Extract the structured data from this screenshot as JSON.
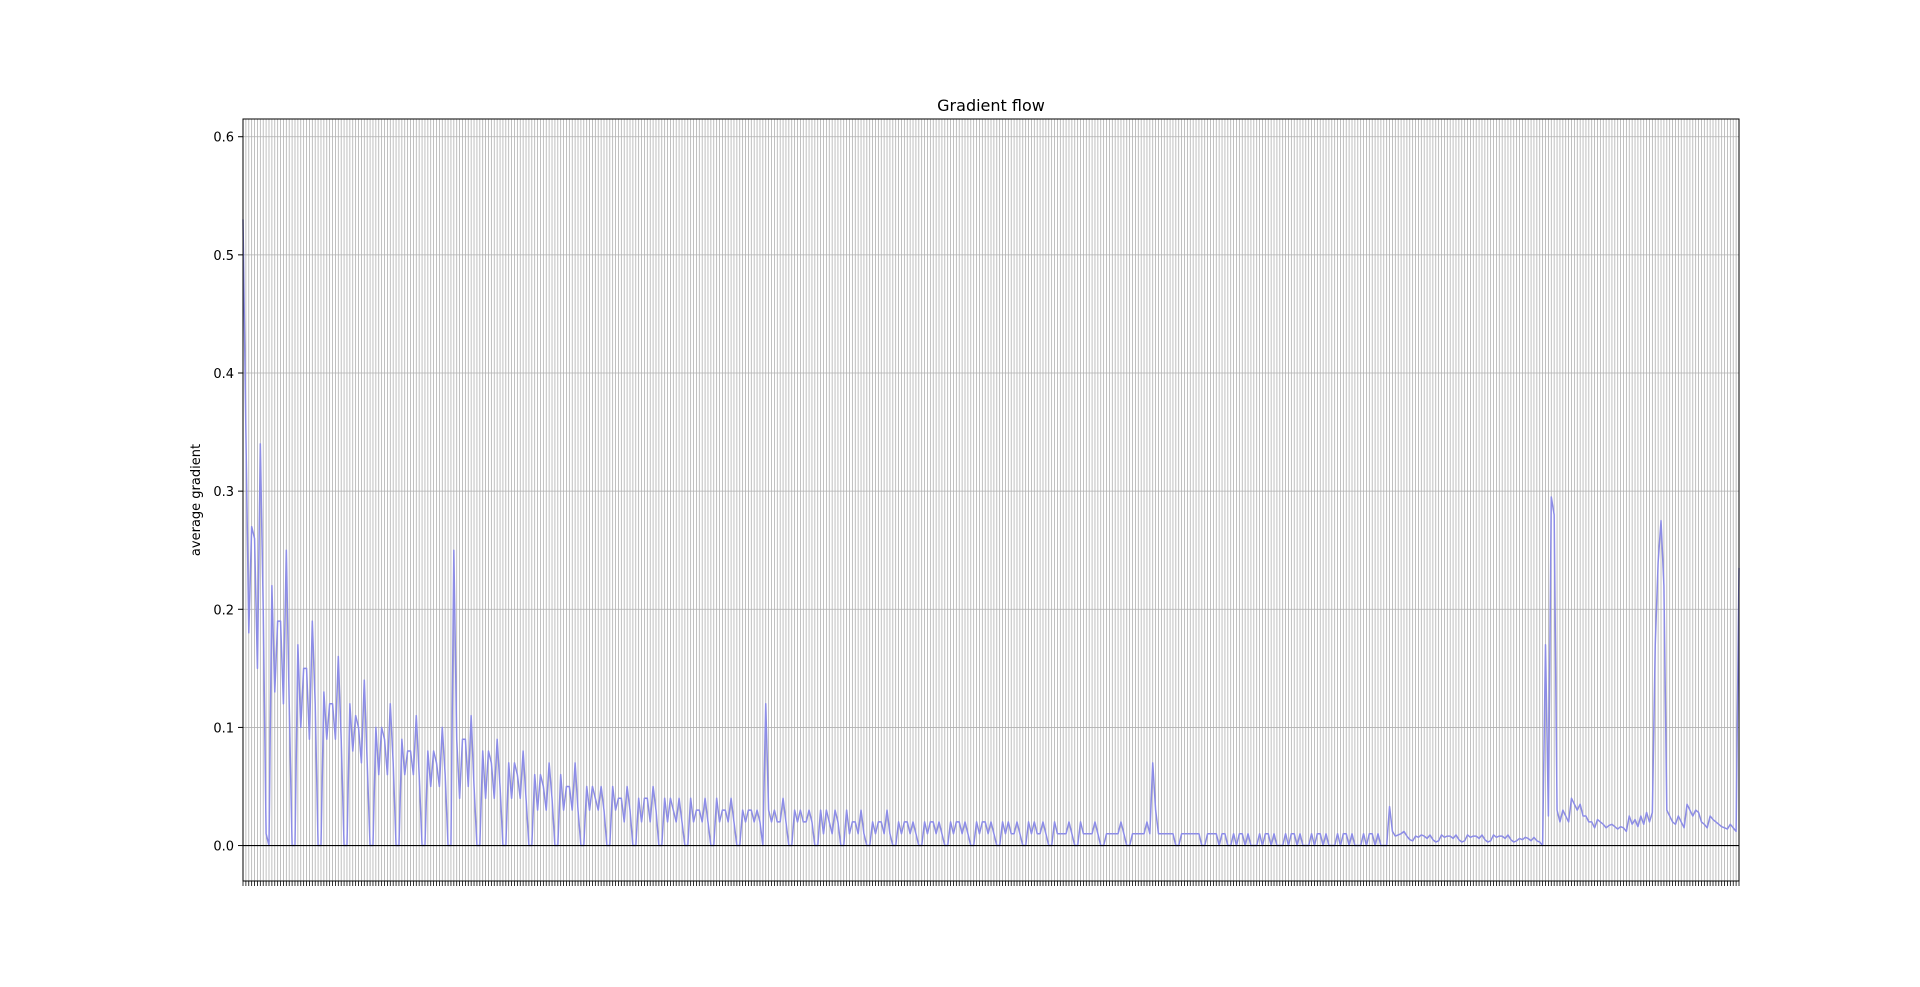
{
  "chart_data": {
    "type": "line",
    "title": "Gradient flow",
    "xlabel": "",
    "ylabel": "average gradient",
    "ylim": [
      -0.03,
      0.615
    ],
    "yticks": [
      0.0,
      0.1,
      0.2,
      0.3,
      0.4,
      0.5,
      0.6
    ],
    "ytick_labels": [
      "0.0",
      "0.1",
      "0.2",
      "0.3",
      "0.4",
      "0.5",
      "0.6"
    ],
    "grid": true,
    "baseline": 0.0,
    "colors": {
      "line": "#8c8ce6",
      "grid": "#b0b0b0",
      "axis": "#000000"
    },
    "layer_names_note": "x tick labels are rotated layer names, not legible in the screenshot",
    "series": [
      {
        "values": [
          0.53,
          0.35,
          0.18,
          0.27,
          0.26,
          0.15,
          0.34,
          0.2,
          0.01,
          0.0,
          0.22,
          0.13,
          0.19,
          0.19,
          0.12,
          0.25,
          0.12,
          0.0,
          0.0,
          0.17,
          0.1,
          0.15,
          0.15,
          0.09,
          0.19,
          0.12,
          0.0,
          0.0,
          0.13,
          0.09,
          0.12,
          0.12,
          0.09,
          0.16,
          0.09,
          0.0,
          0.0,
          0.12,
          0.08,
          0.11,
          0.1,
          0.07,
          0.14,
          0.07,
          0.0,
          0.0,
          0.1,
          0.06,
          0.1,
          0.09,
          0.06,
          0.12,
          0.07,
          0.0,
          0.0,
          0.09,
          0.06,
          0.08,
          0.08,
          0.06,
          0.11,
          0.06,
          0.0,
          0.0,
          0.08,
          0.05,
          0.08,
          0.07,
          0.05,
          0.1,
          0.06,
          0.0,
          0.0,
          0.25,
          0.09,
          0.04,
          0.09,
          0.09,
          0.05,
          0.11,
          0.05,
          0.0,
          0.0,
          0.08,
          0.04,
          0.08,
          0.07,
          0.04,
          0.09,
          0.05,
          0.0,
          0.0,
          0.07,
          0.04,
          0.07,
          0.06,
          0.04,
          0.08,
          0.04,
          0.0,
          0.0,
          0.06,
          0.03,
          0.06,
          0.05,
          0.03,
          0.07,
          0.04,
          0.0,
          0.0,
          0.06,
          0.03,
          0.05,
          0.05,
          0.03,
          0.07,
          0.03,
          0.0,
          0.0,
          0.05,
          0.03,
          0.05,
          0.04,
          0.03,
          0.05,
          0.03,
          0.0,
          0.0,
          0.05,
          0.03,
          0.04,
          0.04,
          0.02,
          0.05,
          0.03,
          0.0,
          0.0,
          0.04,
          0.02,
          0.04,
          0.04,
          0.02,
          0.05,
          0.03,
          0.0,
          0.0,
          0.04,
          0.02,
          0.04,
          0.03,
          0.02,
          0.04,
          0.02,
          0.0,
          0.0,
          0.04,
          0.02,
          0.03,
          0.03,
          0.02,
          0.04,
          0.02,
          0.0,
          0.0,
          0.04,
          0.02,
          0.03,
          0.03,
          0.02,
          0.04,
          0.02,
          0.0,
          0.0,
          0.03,
          0.02,
          0.03,
          0.03,
          0.02,
          0.03,
          0.02,
          0.0,
          0.12,
          0.03,
          0.02,
          0.03,
          0.02,
          0.02,
          0.04,
          0.02,
          0.0,
          0.0,
          0.03,
          0.02,
          0.03,
          0.02,
          0.02,
          0.03,
          0.02,
          0.0,
          0.0,
          0.03,
          0.01,
          0.03,
          0.02,
          0.01,
          0.03,
          0.02,
          0.0,
          0.0,
          0.03,
          0.01,
          0.02,
          0.02,
          0.01,
          0.03,
          0.01,
          0.0,
          0.0,
          0.02,
          0.01,
          0.02,
          0.02,
          0.01,
          0.03,
          0.01,
          0.0,
          0.0,
          0.02,
          0.01,
          0.02,
          0.02,
          0.01,
          0.02,
          0.01,
          0.0,
          0.0,
          0.02,
          0.01,
          0.02,
          0.02,
          0.01,
          0.02,
          0.01,
          0.0,
          0.0,
          0.02,
          0.01,
          0.02,
          0.02,
          0.01,
          0.02,
          0.01,
          0.0,
          0.0,
          0.02,
          0.01,
          0.02,
          0.02,
          0.01,
          0.02,
          0.01,
          0.0,
          0.0,
          0.02,
          0.01,
          0.02,
          0.01,
          0.01,
          0.02,
          0.01,
          0.0,
          0.0,
          0.02,
          0.01,
          0.02,
          0.01,
          0.01,
          0.02,
          0.01,
          0.0,
          0.0,
          0.02,
          0.01,
          0.01,
          0.01,
          0.01,
          0.02,
          0.01,
          0.0,
          0.0,
          0.02,
          0.01,
          0.01,
          0.01,
          0.01,
          0.02,
          0.01,
          0.0,
          0.0,
          0.01,
          0.01,
          0.01,
          0.01,
          0.01,
          0.02,
          0.01,
          0.0,
          0.0,
          0.01,
          0.01,
          0.01,
          0.01,
          0.01,
          0.02,
          0.01,
          0.07,
          0.03,
          0.01,
          0.01,
          0.01,
          0.01,
          0.01,
          0.01,
          0.0,
          0.0,
          0.01,
          0.01,
          0.01,
          0.01,
          0.01,
          0.01,
          0.01,
          0.0,
          0.0,
          0.01,
          0.01,
          0.01,
          0.01,
          0.0,
          0.01,
          0.01,
          0.0,
          0.0,
          0.01,
          0.0,
          0.01,
          0.01,
          0.0,
          0.01,
          0.0,
          0.0,
          0.0,
          0.01,
          0.0,
          0.01,
          0.01,
          0.0,
          0.01,
          0.0,
          0.0,
          0.0,
          0.01,
          0.0,
          0.01,
          0.01,
          0.0,
          0.01,
          0.0,
          0.0,
          0.0,
          0.01,
          0.0,
          0.01,
          0.01,
          0.0,
          0.01,
          0.0,
          0.0,
          0.0,
          0.01,
          0.0,
          0.01,
          0.01,
          0.0,
          0.01,
          0.0,
          0.0,
          0.0,
          0.01,
          0.0,
          0.01,
          0.01,
          0.0,
          0.01,
          0.0,
          0.0,
          0.0,
          0.033,
          0.012,
          0.008,
          0.009,
          0.01,
          0.012,
          0.008,
          0.005,
          0.004,
          0.008,
          0.007,
          0.009,
          0.008,
          0.006,
          0.009,
          0.005,
          0.003,
          0.004,
          0.009,
          0.007,
          0.008,
          0.008,
          0.006,
          0.009,
          0.005,
          0.003,
          0.004,
          0.009,
          0.007,
          0.008,
          0.008,
          0.006,
          0.009,
          0.005,
          0.003,
          0.004,
          0.009,
          0.007,
          0.008,
          0.008,
          0.006,
          0.009,
          0.005,
          0.003,
          0.004,
          0.006,
          0.005,
          0.007,
          0.006,
          0.004,
          0.007,
          0.004,
          0.003,
          0.0,
          0.17,
          0.025,
          0.295,
          0.28,
          0.03,
          0.02,
          0.03,
          0.025,
          0.02,
          0.04,
          0.035,
          0.03,
          0.035,
          0.025,
          0.025,
          0.02,
          0.02,
          0.015,
          0.022,
          0.02,
          0.018,
          0.015,
          0.017,
          0.018,
          0.016,
          0.014,
          0.016,
          0.015,
          0.012,
          0.025,
          0.018,
          0.022,
          0.016,
          0.025,
          0.018,
          0.028,
          0.02,
          0.028,
          0.17,
          0.24,
          0.275,
          0.22,
          0.03,
          0.025,
          0.02,
          0.018,
          0.025,
          0.02,
          0.015,
          0.035,
          0.03,
          0.025,
          0.03,
          0.028,
          0.02,
          0.018,
          0.015,
          0.025,
          0.022,
          0.02,
          0.018,
          0.016,
          0.015,
          0.014,
          0.018,
          0.015,
          0.012,
          0.235
        ]
      }
    ]
  }
}
